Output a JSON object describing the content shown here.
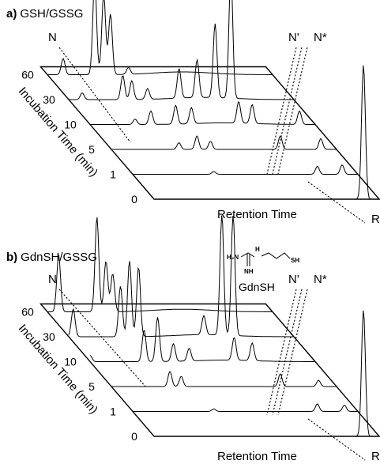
{
  "chart_data": [
    {
      "type": "line",
      "panel_label": "a)",
      "title": "GSH/GSSG",
      "xlabel": "Retention Time",
      "ylabel": "Incubation Time (min)",
      "x_end_label": "R",
      "series_axis_labels": [
        "0",
        "1",
        "5",
        "10",
        "30",
        "60"
      ],
      "peak_markers": [
        "N",
        "N'",
        "N*"
      ],
      "series": [
        {
          "name": "0",
          "peaks": [
            {
              "x": 0.93,
              "h": 1.0
            }
          ]
        },
        {
          "name": "1",
          "peaks": [
            {
              "x": 0.36,
              "h": 0.02
            },
            {
              "x": 0.82,
              "h": 0.06
            },
            {
              "x": 0.93,
              "h": 0.07
            }
          ]
        },
        {
          "name": "5",
          "peaks": [
            {
              "x": 0.3,
              "h": 0.05
            },
            {
              "x": 0.38,
              "h": 0.1
            },
            {
              "x": 0.44,
              "h": 0.06
            },
            {
              "x": 0.75,
              "h": 0.1
            },
            {
              "x": 0.93,
              "h": 0.08
            }
          ]
        },
        {
          "name": "10",
          "peaks": [
            {
              "x": 0.2,
              "h": 0.04
            },
            {
              "x": 0.27,
              "h": 0.1
            },
            {
              "x": 0.38,
              "h": 0.14
            },
            {
              "x": 0.45,
              "h": 0.12
            },
            {
              "x": 0.66,
              "h": 0.16
            },
            {
              "x": 0.72,
              "h": 0.14
            },
            {
              "x": 0.93,
              "h": 0.1
            }
          ]
        },
        {
          "name": "30",
          "peaks": [
            {
              "x": 0.06,
              "h": 0.05
            },
            {
              "x": 0.24,
              "h": 0.18
            },
            {
              "x": 0.28,
              "h": 0.14
            },
            {
              "x": 0.35,
              "h": 0.08
            },
            {
              "x": 0.49,
              "h": 0.22
            },
            {
              "x": 0.57,
              "h": 0.28
            },
            {
              "x": 0.65,
              "h": 0.55
            },
            {
              "x": 0.72,
              "h": 0.95
            }
          ]
        },
        {
          "name": "60",
          "peaks": [
            {
              "x": 0.07,
              "h": 0.12
            },
            {
              "x": 0.21,
              "h": 0.7
            },
            {
              "x": 0.25,
              "h": 0.6
            },
            {
              "x": 0.28,
              "h": 0.45
            },
            {
              "x": 0.36,
              "h": 0.05
            }
          ]
        }
      ]
    },
    {
      "type": "line",
      "panel_label": "b)",
      "title": "GdnSH/GSSG",
      "xlabel": "Retention Time",
      "ylabel": "Incubation Time (min)",
      "x_end_label": "R",
      "series_axis_labels": [
        "0",
        "1",
        "5",
        "10",
        "30",
        "60"
      ],
      "peak_markers": [
        "N",
        "N'",
        "N*"
      ],
      "compound_label": "GdnSH",
      "compound_atoms": [
        "H₂N",
        "H",
        "NH",
        "SH"
      ],
      "series": [
        {
          "name": "0",
          "peaks": [
            {
              "x": 0.93,
              "h": 1.0
            }
          ]
        },
        {
          "name": "1",
          "peaks": [
            {
              "x": 0.36,
              "h": 0.02
            },
            {
              "x": 0.82,
              "h": 0.06
            },
            {
              "x": 0.94,
              "h": 0.05
            }
          ]
        },
        {
          "name": "5",
          "peaks": [
            {
              "x": 0.26,
              "h": 0.12
            },
            {
              "x": 0.31,
              "h": 0.08
            },
            {
              "x": 0.75,
              "h": 0.1
            },
            {
              "x": 0.92,
              "h": 0.05
            }
          ]
        },
        {
          "name": "10",
          "peaks": [
            {
              "x": 0.0,
              "h": 0.05
            },
            {
              "x": 0.24,
              "h": 0.25
            },
            {
              "x": 0.3,
              "h": 0.35
            },
            {
              "x": 0.37,
              "h": 0.14
            },
            {
              "x": 0.44,
              "h": 0.1
            },
            {
              "x": 0.64,
              "h": 0.18
            },
            {
              "x": 0.72,
              "h": 0.14
            }
          ]
        },
        {
          "name": "30",
          "peaks": [
            {
              "x": 0.02,
              "h": 0.22
            },
            {
              "x": 0.23,
              "h": 0.4
            },
            {
              "x": 0.27,
              "h": 0.6
            },
            {
              "x": 0.31,
              "h": 0.55
            },
            {
              "x": 0.6,
              "h": 0.15
            },
            {
              "x": 0.68,
              "h": 0.95
            },
            {
              "x": 0.73,
              "h": 0.95
            }
          ]
        },
        {
          "name": "60",
          "peaks": [
            {
              "x": 0.05,
              "h": 0.45
            },
            {
              "x": 0.22,
              "h": 0.75
            },
            {
              "x": 0.26,
              "h": 0.4
            },
            {
              "x": 0.29,
              "h": 0.3
            }
          ]
        }
      ]
    }
  ]
}
